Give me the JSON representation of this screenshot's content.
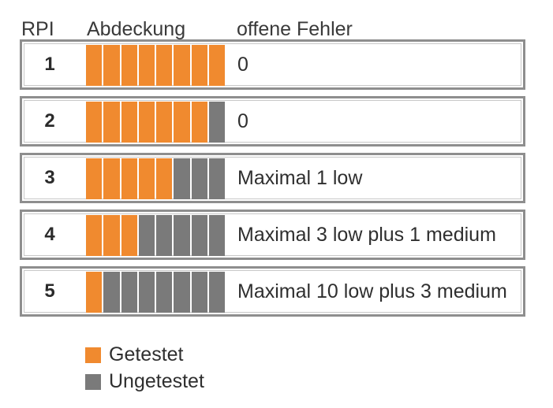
{
  "headers": {
    "rpi": "RPI",
    "coverage": "Abdeckung",
    "errors": "offene Fehler"
  },
  "total_segments": 8,
  "colors": {
    "tested": "#f08a2f",
    "untested": "#7a7a7a",
    "border": "#8e8e8e"
  },
  "rows": [
    {
      "rpi": "1",
      "tested": 8,
      "errors": "0"
    },
    {
      "rpi": "2",
      "tested": 7,
      "errors": "0"
    },
    {
      "rpi": "3",
      "tested": 5,
      "errors": "Maximal 1 low"
    },
    {
      "rpi": "4",
      "tested": 3,
      "errors": "Maximal 3 low plus 1 medium"
    },
    {
      "rpi": "5",
      "tested": 1,
      "errors": "Maximal 10 low plus 3 medium"
    }
  ],
  "legend": {
    "tested": "Getestet",
    "untested": "Ungetestet"
  }
}
